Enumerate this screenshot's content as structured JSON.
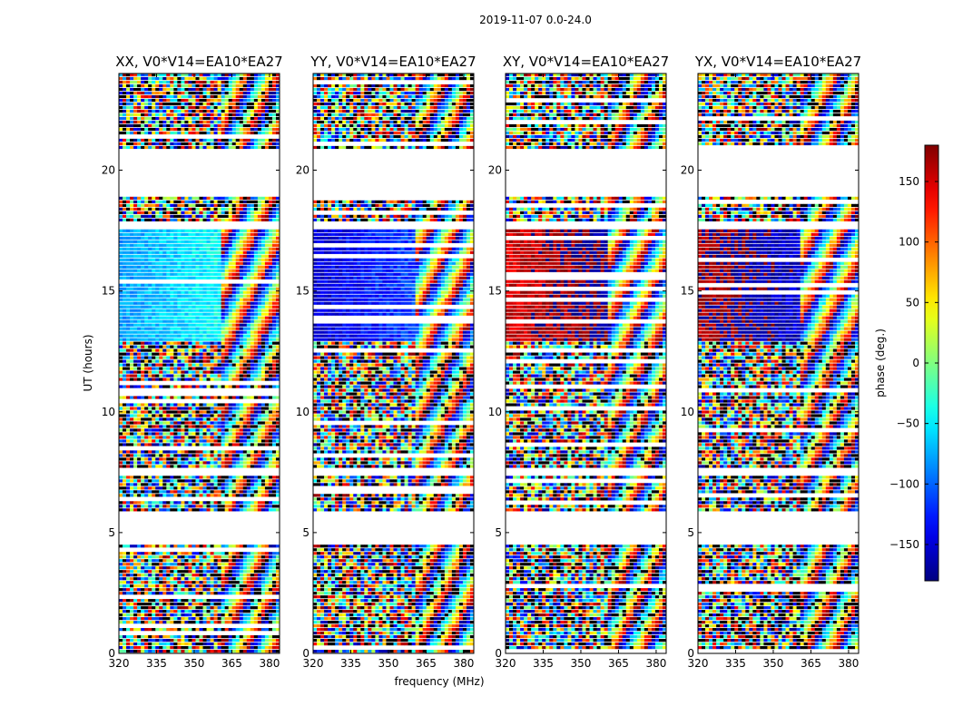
{
  "figure": {
    "suptitle": "2019-11-07 0.0-24.0"
  },
  "chart_data": {
    "type": "heatmap",
    "xlabel": "frequency (MHz)",
    "ylabel": "UT (hours)",
    "xlim": [
      320,
      384
    ],
    "ylim": [
      0,
      24
    ],
    "x_ticks": [
      320,
      335,
      350,
      365,
      380
    ],
    "y_ticks": [
      0,
      5,
      10,
      15,
      20
    ],
    "colormap": "jet",
    "colorbar": {
      "label": "phase (deg.)",
      "range": [
        -180,
        180
      ],
      "ticks": [
        150,
        100,
        50,
        0,
        -50,
        -100,
        -150
      ],
      "tick_labels": [
        "150",
        "100",
        "50",
        "0",
        "−50",
        "−100",
        "−150"
      ]
    },
    "panels": [
      {
        "title": "XX, V0*V14=EA10*EA27",
        "phase_center": -80,
        "phase_spread": 35
      },
      {
        "title": "YY, V0*V14=EA10*EA27",
        "phase_center": -150,
        "phase_spread": 40
      },
      {
        "title": "XY, V0*V14=EA10*EA27",
        "phase_center": 150,
        "phase_spread": 45
      },
      {
        "title": "YX, V0*V14=EA10*EA27",
        "phase_center": 170,
        "phase_spread": 50
      }
    ],
    "blank_ut_ranges": [
      [
        4.5,
        4.9
      ],
      [
        5.0,
        5.9
      ],
      [
        7.4,
        7.7
      ],
      [
        18.9,
        20.9
      ],
      [
        18.1,
        18.2
      ],
      [
        17.6,
        17.8
      ]
    ]
  }
}
